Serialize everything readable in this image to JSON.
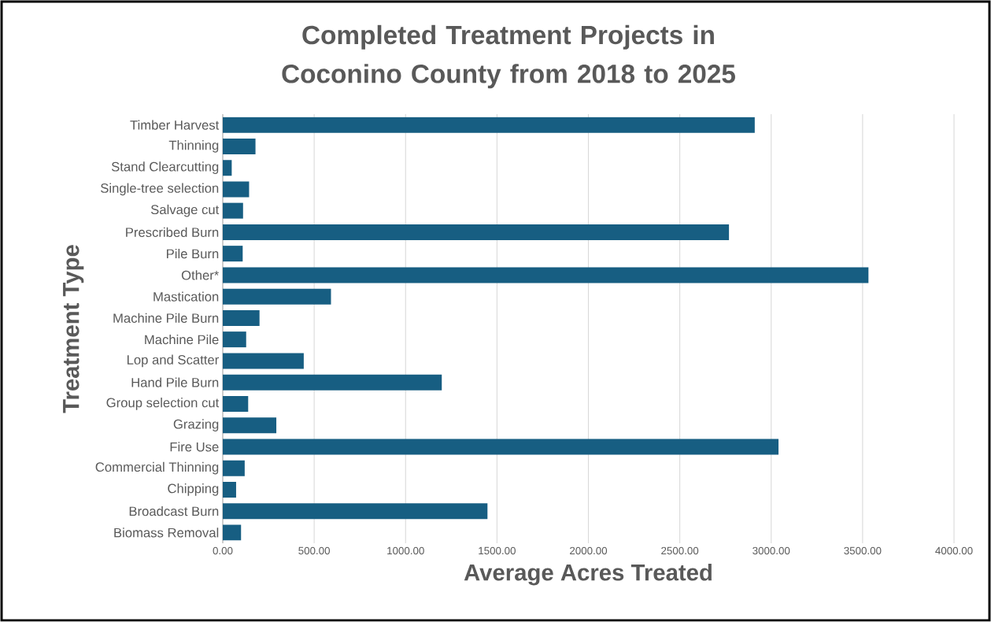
{
  "chart_data": {
    "type": "bar",
    "orientation": "horizontal",
    "title": "Completed Treatment Projects in Coconino County from 2018 to 2025",
    "xlabel": "Average Acres Treated",
    "ylabel": "Treatment Type",
    "categories": [
      "Timber Harvest",
      "Thinning",
      "Stand Clearcutting",
      "Single-tree selection",
      "Salvage cut",
      "Prescribed Burn",
      "Pile Burn",
      "Other*",
      "Mastication",
      "Machine Pile Burn",
      "Machine Pile",
      "Lop and Scatter",
      "Hand Pile Burn",
      "Group selection cut",
      "Grazing",
      "Fire Use",
      "Commercial Thinning",
      "Chipping",
      "Broadcast Burn",
      "Biomass Removal"
    ],
    "values": [
      2910,
      179,
      49,
      144,
      111,
      2769,
      109,
      3532,
      592,
      201,
      128,
      443,
      1198,
      139,
      293,
      3040,
      120,
      73,
      1448,
      100
    ],
    "color": "#175e82",
    "xlim": [
      0,
      4000
    ],
    "xticks": [
      {
        "value": 0,
        "label": "0.00"
      },
      {
        "value": 500,
        "label": "500.00"
      },
      {
        "value": 1000,
        "label": "1000.00"
      },
      {
        "value": 1500,
        "label": "1500.00"
      },
      {
        "value": 2000,
        "label": "2000.00"
      },
      {
        "value": 2500,
        "label": "2500.00"
      },
      {
        "value": 3000,
        "label": "3000.00"
      },
      {
        "value": 3500,
        "label": "3500.00"
      },
      {
        "value": 4000,
        "label": "4000.00"
      }
    ],
    "grid": "x"
  }
}
